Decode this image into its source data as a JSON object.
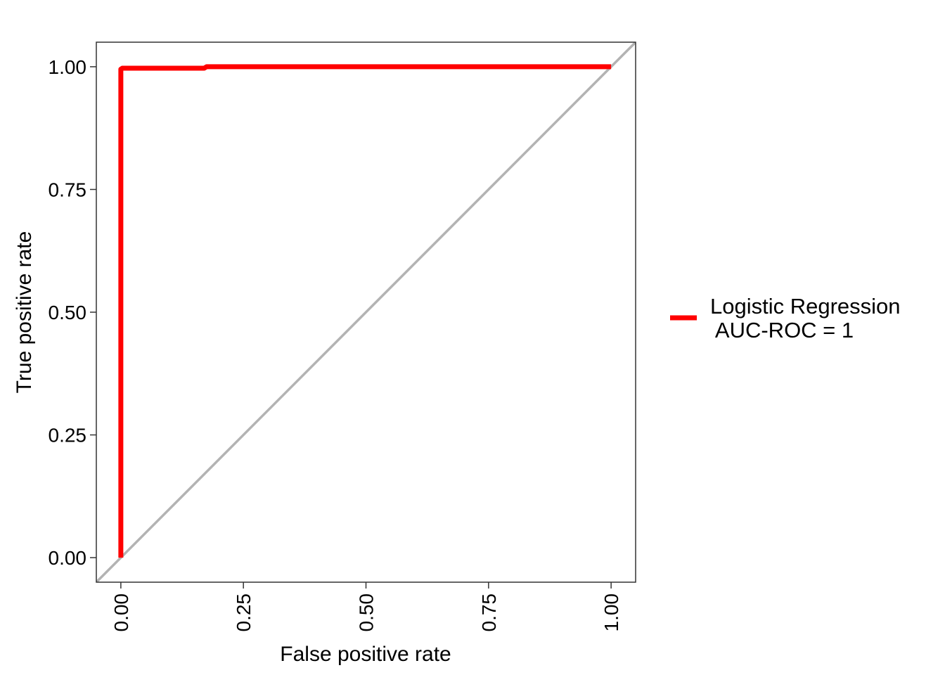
{
  "chart_data": {
    "type": "line",
    "title": "",
    "xlabel": "False positive rate",
    "ylabel": "True positive rate",
    "xlim": [
      -0.05,
      1.05
    ],
    "ylim": [
      -0.05,
      1.05
    ],
    "x_ticks": [
      "0.00",
      "0.25",
      "0.50",
      "0.75",
      "1.00"
    ],
    "y_ticks": [
      "0.00",
      "0.25",
      "0.50",
      "0.75",
      "1.00"
    ],
    "grid": false,
    "legend_position": "right",
    "series": [
      {
        "name": "Logistic Regression\n AUC-ROC = 1",
        "color": "#ff0000",
        "x": [
          0,
          0,
          0.003,
          0.17,
          0.175,
          0.205,
          1.0
        ],
        "y": [
          0,
          0.995,
          0.997,
          0.997,
          1.0,
          1.0,
          1.0
        ]
      }
    ],
    "reference_line": {
      "x": [
        -0.05,
        1.05
      ],
      "y": [
        -0.05,
        1.05
      ],
      "color": "#b3b3b3"
    }
  }
}
